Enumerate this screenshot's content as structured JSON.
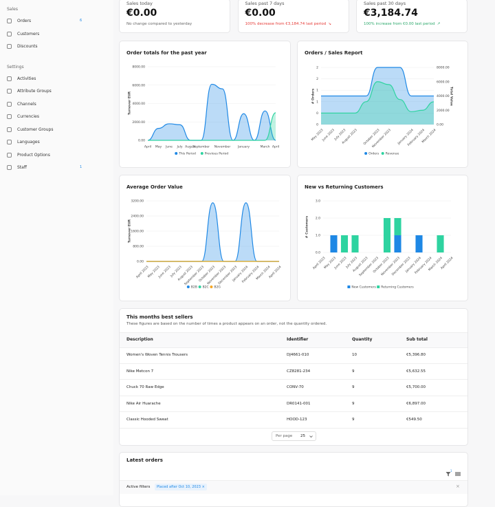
{
  "sidebar": {
    "sections": [
      {
        "title": "Sales",
        "items": [
          {
            "label": "Orders",
            "badge": "6"
          },
          {
            "label": "Customers"
          },
          {
            "label": "Discounts"
          }
        ]
      },
      {
        "title": "Settings",
        "items": [
          {
            "label": "Activities"
          },
          {
            "label": "Attribute Groups"
          },
          {
            "label": "Channels"
          },
          {
            "label": "Currencies"
          },
          {
            "label": "Customer Groups"
          },
          {
            "label": "Languages"
          },
          {
            "label": "Product Options"
          },
          {
            "label": "Staff",
            "badge": "1"
          }
        ]
      }
    ]
  },
  "stats": [
    {
      "label": "Sales today",
      "value": "€0.00",
      "note": "No change compared to yesterday"
    },
    {
      "label": "Sales past 7 days",
      "value": "€0.00",
      "note": "100% decrease from €3,184.74 last period"
    },
    {
      "label": "Sales past 30 days",
      "value": "€3,184.74",
      "note": "100% increase from €0.00 last period"
    }
  ],
  "chart_data": [
    {
      "type": "line",
      "title": "Order totals for the past year",
      "y_label": "Turnover EUR",
      "categories": [
        "April",
        "May",
        "June",
        "July",
        "August",
        "September",
        null,
        "November",
        null,
        "January",
        null,
        "March",
        "April"
      ],
      "series": [
        {
          "name": "This Period",
          "color": "#1e88e5",
          "values": [
            0,
            1300,
            1800,
            1700,
            0,
            0,
            6100,
            5600,
            0,
            2900,
            0,
            3200,
            0
          ]
        },
        {
          "name": "Previous Period",
          "color": "#2ed3a0",
          "values": [
            0,
            0,
            0,
            0,
            0,
            0,
            0,
            0,
            0,
            0,
            0,
            0,
            3000
          ]
        }
      ],
      "ylim": [
        0,
        8000
      ],
      "yticks": [
        {
          "value": 0,
          "label": "0.00"
        },
        {
          "value": 2000,
          "label": "2000.00"
        },
        {
          "value": 4000,
          "label": "4000.00"
        },
        {
          "value": 6000,
          "label": "6000.00"
        },
        {
          "value": 8000,
          "label": "8000.00"
        }
      ],
      "grid": true
    },
    {
      "type": "line",
      "title": "Orders / Sales Report",
      "y_label": "# Orders",
      "y2_label": "Total Value",
      "categories": [
        "May 2023",
        "June 2023",
        "July 2023",
        "August 2023",
        null,
        "October 2023",
        "November 2023",
        null,
        "January 2024",
        "February 2024",
        "March 2024"
      ],
      "series": [
        {
          "name": "Orders",
          "color": "#1e88e5",
          "values": [
            1,
            1,
            1,
            1,
            1,
            2,
            2,
            2,
            1,
            1,
            1
          ]
        },
        {
          "name": "Revenue",
          "color": "#2ed3a0",
          "axis": "y2",
          "values": [
            1600,
            1600,
            1600,
            1600,
            3200,
            6000,
            5600,
            3500,
            1800,
            2000,
            3184.74
          ]
        }
      ],
      "ylim": [
        0,
        2
      ],
      "yticks": [
        0,
        {
          "value": 0.4,
          "label": "0"
        },
        {
          "value": 0.8,
          "label": "1"
        },
        {
          "value": 1.2,
          "label": "1"
        },
        {
          "value": 1.6,
          "label": "2"
        },
        2
      ],
      "y2lim": [
        0,
        8000
      ],
      "y2ticks": [
        {
          "value": 0,
          "label": "0.00"
        },
        {
          "value": 2000,
          "label": "2000.00"
        },
        {
          "value": 4000,
          "label": "4000.00"
        },
        {
          "value": 6000,
          "label": "6000.00"
        },
        {
          "value": 8000,
          "label": "8000.00"
        }
      ],
      "grid": true
    },
    {
      "type": "line",
      "title": "Average Order Value",
      "y_label": "Turnover EUR",
      "categories": [
        "April 2023",
        "May 2023",
        "June 2023",
        "July 2023",
        "August 2023",
        "September 2023",
        "October 2023",
        "November 2023",
        "December 2023",
        "January 2024",
        "February 2024",
        "March 2024",
        "April 2024"
      ],
      "series": [
        {
          "name": "B2B",
          "color": "#1e88e5",
          "values": [
            0,
            0,
            0,
            0,
            0,
            0,
            3100,
            0,
            0,
            3100,
            0,
            0,
            0
          ]
        },
        {
          "name": "B2C",
          "color": "#2ed3a0",
          "values": [
            0,
            0,
            0,
            0,
            0,
            0,
            0,
            0,
            0,
            0,
            0,
            0,
            0
          ]
        },
        {
          "name": "B2G",
          "color": "#f5a623",
          "values": [
            0,
            0,
            0,
            0,
            0,
            0,
            0,
            0,
            0,
            0,
            0,
            0,
            0
          ]
        }
      ],
      "ylim": [
        0,
        3200
      ],
      "yticks": [
        {
          "value": 0,
          "label": "0.00"
        },
        {
          "value": 800,
          "label": "800.00"
        },
        {
          "value": 1600,
          "label": "1600.00"
        },
        {
          "value": 2400,
          "label": "2400.00"
        },
        {
          "value": 3200,
          "label": "3200.00"
        }
      ],
      "grid": true
    },
    {
      "type": "bar",
      "stacked": true,
      "title": "New vs Returning Customers",
      "y_label": "# Customers",
      "categories": [
        "April 2023",
        "May 2023",
        "June 2023",
        "July 2023",
        "August 2023",
        "September 2023",
        "October 2023",
        "November 2023",
        "December 2023",
        "January 2024",
        "February 2024",
        "March 2024",
        "April 2024"
      ],
      "series": [
        {
          "name": "New Customers",
          "color": "#1e88e5",
          "values": [
            0,
            1,
            0,
            0,
            0,
            0,
            0,
            1,
            0,
            1,
            0,
            0,
            0
          ]
        },
        {
          "name": "Returning Customers",
          "color": "#2ed3a0",
          "values": [
            0,
            0,
            1,
            1,
            0,
            0,
            2,
            1,
            0,
            0,
            0,
            1,
            0
          ]
        }
      ],
      "ylim": [
        0,
        3
      ],
      "yticks": [
        {
          "value": 0,
          "label": "0.0"
        },
        {
          "value": 1,
          "label": "1.0"
        },
        {
          "value": 2,
          "label": "2.0"
        },
        {
          "value": 3,
          "label": "3.0"
        }
      ],
      "grid": true
    }
  ],
  "best_sellers": {
    "title": "This months best sellers",
    "subtitle": "These figures are based on the number of times a product appears on an order, not the quantity ordered.",
    "columns": [
      "Description",
      "Identifier",
      "Quantity",
      "Sub total"
    ],
    "rows": [
      [
        "Women's Woven Tennis Trousers",
        "DJ4661-010",
        "10",
        "€5,396.80"
      ],
      [
        "Nike Metcon 7",
        "CZ8281-234",
        "9",
        "€5,632.55"
      ],
      [
        "Chuck 70 Raw Edge",
        "CONV-70",
        "9",
        "€5,700.00"
      ],
      [
        "Nike Air Huarache",
        "DR0141-001",
        "9",
        "€6,897.00"
      ],
      [
        "Classic Hooded Sweat",
        "HOOD-123",
        "9",
        "€549.50"
      ]
    ],
    "per_page_label": "Per page",
    "per_page": "25"
  },
  "latest_orders": {
    "title": "Latest orders",
    "filter_count": "1",
    "filters_label": "Active filters",
    "filter": "Placed after Oct 10, 2023"
  }
}
